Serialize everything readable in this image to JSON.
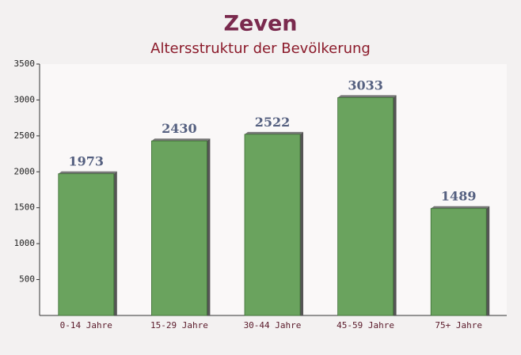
{
  "chart_data": {
    "type": "bar",
    "title": "Zeven",
    "subtitle": "Altersstruktur der Bevölkerung",
    "categories": [
      "0-14 Jahre",
      "15-29 Jahre",
      "30-44 Jahre",
      "45-59 Jahre",
      "75+ Jahre"
    ],
    "values": [
      1973,
      2430,
      2522,
      3033,
      1489
    ],
    "color": "#6aa35e",
    "ylim": [
      0,
      3500
    ],
    "yticks": [
      500,
      1000,
      1500,
      2000,
      2500,
      3000,
      3500
    ],
    "grid": false
  }
}
